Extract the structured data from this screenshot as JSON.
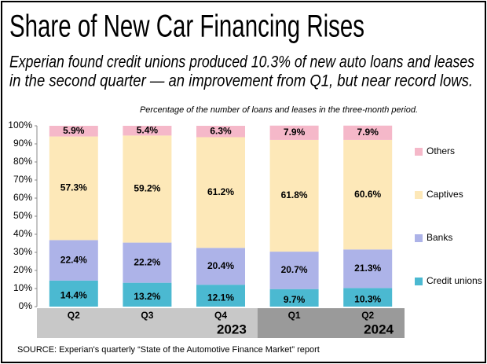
{
  "chart_data": {
    "type": "stacked_bar",
    "title": "Share of New Car Financing Rises",
    "subtitle": [
      "Experian found credit unions produced 10.3% of new auto loans and leases",
      "in the second quarter — an improvement from Q1, but near record lows."
    ],
    "note": "Percentage of the number of loans and leases in the three-month period.",
    "source": "SOURCE:  Experian's quarterly “State of the Automotive Finance Market” report",
    "category_groups": [
      {
        "label": "2023",
        "categories": [
          "Q2",
          "Q3",
          "Q4"
        ]
      },
      {
        "label": "2024",
        "categories": [
          "Q1",
          "Q2"
        ]
      }
    ],
    "series": [
      {
        "name": "Credit unions",
        "color": "#4bb9d1",
        "values": [
          14.4,
          13.2,
          12.1,
          9.7,
          10.3
        ],
        "value_labels": [
          "14.4%",
          "13.2%",
          "12.1%",
          "9.7%",
          "10.3%"
        ]
      },
      {
        "name": "Banks",
        "color": "#adb3e8",
        "values": [
          22.4,
          22.2,
          20.4,
          20.7,
          21.3
        ],
        "value_labels": [
          "22.4%",
          "22.2%",
          "20.4%",
          "20.7%",
          "21.3%"
        ]
      },
      {
        "name": "Captives",
        "color": "#fde8b8",
        "values": [
          57.3,
          59.2,
          61.2,
          61.8,
          60.6
        ],
        "value_labels": [
          "57.3%",
          "59.2%",
          "61.2%",
          "61.8%",
          "60.6%"
        ]
      },
      {
        "name": "Others",
        "color": "#f5b8c9",
        "values": [
          5.9,
          5.4,
          6.3,
          7.9,
          7.9
        ],
        "value_labels": [
          "5.9%",
          "5.4%",
          "6.3%",
          "7.9%",
          "7.9%"
        ]
      }
    ],
    "ylim": [
      0,
      100
    ],
    "yticks": [
      {
        "value": 0,
        "label": "0%"
      },
      {
        "value": 10,
        "label": "10%"
      },
      {
        "value": 20,
        "label": "20%"
      },
      {
        "value": 30,
        "label": "30%"
      },
      {
        "value": 40,
        "label": "40%"
      },
      {
        "value": 50,
        "label": "50%"
      },
      {
        "value": 60,
        "label": "60%"
      },
      {
        "value": 70,
        "label": "70%"
      },
      {
        "value": 80,
        "label": "80%"
      },
      {
        "value": 90,
        "label": "90%"
      },
      {
        "value": 100,
        "label": "100%"
      }
    ],
    "grid": false
  }
}
